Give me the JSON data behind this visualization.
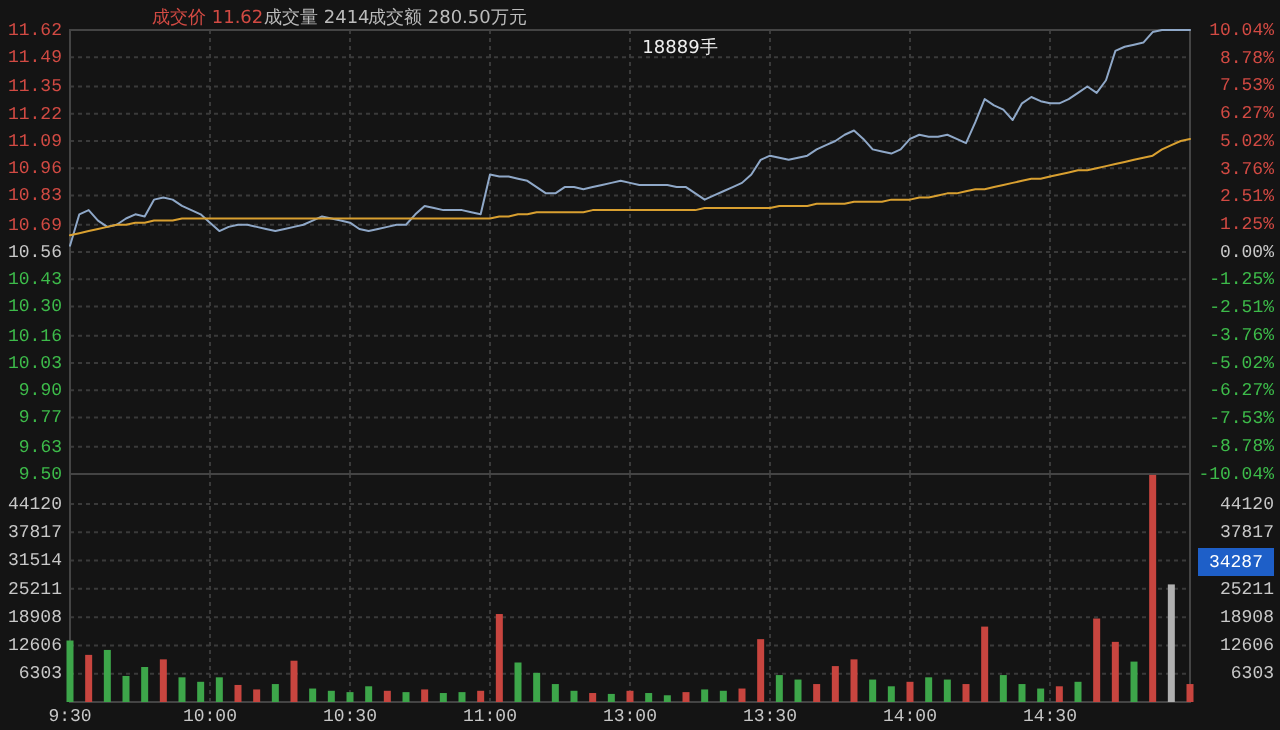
{
  "chart_data": [
    {
      "type": "line",
      "grid": true,
      "tick_labels": "y",
      "annotations": [
        "成交价 11.62",
        "成交量 2414",
        "成交额 280.50万元",
        "18889手"
      ],
      "categories": [
        null,
        null,
        null,
        null,
        null,
        null,
        null,
        null,
        null,
        null,
        null,
        null,
        null,
        null,
        null,
        null,
        null,
        null,
        null,
        null,
        null,
        null,
        null,
        null,
        null,
        null,
        null,
        null,
        null,
        null,
        null,
        null,
        null,
        null,
        null,
        null,
        null,
        null,
        null,
        null,
        null,
        null,
        null,
        null,
        null,
        null,
        null,
        null,
        null,
        null,
        null,
        null,
        null,
        null,
        null,
        null,
        null,
        null,
        null,
        null,
        null,
        null,
        null,
        null,
        null,
        null,
        null,
        null,
        null,
        null,
        null,
        null,
        null,
        null,
        null,
        null,
        null,
        null,
        null,
        null,
        null,
        null,
        null,
        null,
        null,
        null,
        null,
        null,
        null,
        null,
        null,
        null,
        null,
        null,
        null,
        null,
        null,
        null,
        null,
        null,
        null,
        null,
        null,
        null,
        null,
        null,
        null,
        null,
        null,
        null,
        null,
        null,
        null,
        null,
        null,
        null,
        null,
        null,
        null,
        null,
        null
      ],
      "ylim": [
        9.5,
        11.62
      ],
      "yticks": [
        11.62,
        11.49,
        11.35,
        11.22,
        11.09,
        10.96,
        10.83,
        10.69,
        10.56,
        10.43,
        {
          "value": 10.3,
          "label": "10.30"
        },
        10.16,
        10.03,
        {
          "value": 9.9,
          "label": "9.90"
        },
        9.77,
        9.63,
        {
          "value": 9.5,
          "label": "9.50"
        }
      ],
      "y2lim": [
        -10.04,
        10.04
      ],
      "y2ticks": [
        {
          "value": 10.04,
          "label": "10.04%"
        },
        {
          "value": 8.78,
          "label": "8.78%"
        },
        {
          "value": 7.53,
          "label": "7.53%"
        },
        {
          "value": 6.27,
          "label": "6.27%"
        },
        {
          "value": 5.02,
          "label": "5.02%"
        },
        {
          "value": 3.76,
          "label": "3.76%"
        },
        {
          "value": 2.51,
          "label": "2.51%"
        },
        {
          "value": 1.25,
          "label": "1.25%"
        },
        {
          "value": 0,
          "label": "0.00%"
        },
        {
          "value": -1.25,
          "label": "-1.25%"
        },
        {
          "value": -2.51,
          "label": "-2.51%"
        },
        {
          "value": -3.76,
          "label": "-3.76%"
        },
        {
          "value": -5.02,
          "label": "-5.02%"
        },
        {
          "value": -6.27,
          "label": "-6.27%"
        },
        {
          "value": -7.53,
          "label": "-7.53%"
        },
        {
          "value": -8.78,
          "label": "-8.78%"
        },
        {
          "value": -10.04,
          "label": "-10.04%"
        }
      ],
      "series": [
        {
          "color": "#8fa8c8",
          "values": [
            10.59,
            10.74,
            10.76,
            10.71,
            10.68,
            10.69,
            10.72,
            10.74,
            10.73,
            10.81,
            10.82,
            10.81,
            10.78,
            10.76,
            10.74,
            10.7,
            10.66,
            10.68,
            10.69,
            10.69,
            10.68,
            10.67,
            10.66,
            10.67,
            10.68,
            10.69,
            10.71,
            10.73,
            10.72,
            10.71,
            10.7,
            10.67,
            10.66,
            10.67,
            10.68,
            10.69,
            10.69,
            10.74,
            10.78,
            10.77,
            10.76,
            10.76,
            10.76,
            10.75,
            10.74,
            10.93,
            10.92,
            10.92,
            10.91,
            10.9,
            10.87,
            10.84,
            10.84,
            10.87,
            10.87,
            10.86,
            10.87,
            10.88,
            10.89,
            10.9,
            10.89,
            10.88,
            10.88,
            10.88,
            10.88,
            10.87,
            10.87,
            10.84,
            10.81,
            10.83,
            10.85,
            10.87,
            10.89,
            10.93,
            11.0,
            11.02,
            11.01,
            11.0,
            11.01,
            11.02,
            11.05,
            11.07,
            11.09,
            11.12,
            11.14,
            11.1,
            11.05,
            11.04,
            11.03,
            11.05,
            11.1,
            11.12,
            11.11,
            11.11,
            11.12,
            11.1,
            11.08,
            11.18,
            11.29,
            11.26,
            11.24,
            11.19,
            11.27,
            11.3,
            11.28,
            11.27,
            11.27,
            11.29,
            11.32,
            11.35,
            11.32,
            11.38,
            11.52,
            11.54,
            11.55,
            11.56,
            11.61,
            11.62,
            11.62,
            11.62,
            11.62
          ]
        },
        {
          "color": "#d9a030",
          "values": [
            10.64,
            10.65,
            10.66,
            10.67,
            10.68,
            10.69,
            10.69,
            10.7,
            10.7,
            10.71,
            10.71,
            10.71,
            10.72,
            10.72,
            10.72,
            10.72,
            10.72,
            10.72,
            10.72,
            10.72,
            10.72,
            10.72,
            10.72,
            10.72,
            10.72,
            10.72,
            10.72,
            10.72,
            10.72,
            10.72,
            10.72,
            10.72,
            10.72,
            10.72,
            10.72,
            10.72,
            10.72,
            10.72,
            10.72,
            10.72,
            10.72,
            10.72,
            10.72,
            10.72,
            10.72,
            10.72,
            10.73,
            10.73,
            10.74,
            10.74,
            10.75,
            10.75,
            10.75,
            10.75,
            10.75,
            10.75,
            10.76,
            10.76,
            10.76,
            10.76,
            10.76,
            10.76,
            10.76,
            10.76,
            10.76,
            10.76,
            10.76,
            10.76,
            10.77,
            10.77,
            10.77,
            10.77,
            10.77,
            10.77,
            10.77,
            10.77,
            10.78,
            10.78,
            10.78,
            10.78,
            10.79,
            10.79,
            10.79,
            10.79,
            10.8,
            10.8,
            10.8,
            10.8,
            10.81,
            10.81,
            10.81,
            10.82,
            10.82,
            10.83,
            10.84,
            10.84,
            10.85,
            10.86,
            10.86,
            10.87,
            10.88,
            10.89,
            10.9,
            10.91,
            10.91,
            10.92,
            10.93,
            10.94,
            10.95,
            10.95,
            10.96,
            10.97,
            10.98,
            10.99,
            11.0,
            11.01,
            11.02,
            11.05,
            11.07,
            11.09,
            11.1
          ]
        }
      ]
    },
    {
      "type": "bar",
      "grid": true,
      "annotations": [
        "34287"
      ],
      "categories": [
        "9:30",
        null,
        null,
        null,
        null,
        null,
        null,
        null,
        null,
        null,
        null,
        null,
        null,
        null,
        null,
        "10:00",
        null,
        null,
        null,
        null,
        null,
        null,
        null,
        null,
        null,
        null,
        null,
        null,
        null,
        null,
        "10:30",
        null,
        null,
        null,
        null,
        null,
        null,
        null,
        null,
        null,
        null,
        null,
        null,
        null,
        null,
        "11:00",
        null,
        null,
        null,
        null,
        null,
        null,
        null,
        null,
        null,
        null,
        null,
        null,
        null,
        null,
        "13:00",
        null,
        null,
        null,
        null,
        null,
        null,
        null,
        null,
        null,
        null,
        null,
        null,
        null,
        null,
        "13:30",
        null,
        null,
        null,
        null,
        null,
        null,
        null,
        null,
        null,
        null,
        null,
        null,
        null,
        null,
        "14:00",
        null,
        null,
        null,
        null,
        null,
        null,
        null,
        null,
        null,
        null,
        null,
        null,
        null,
        null,
        "14:30",
        null,
        null,
        null,
        null,
        null,
        null,
        null,
        null,
        null,
        null,
        null,
        null,
        null,
        null,
        null
      ],
      "ylim": [
        0,
        50800
      ],
      "yticks": [
        44120,
        37817,
        31514,
        25211,
        18908,
        12606,
        6303
      ],
      "y2lim": [
        0,
        50800
      ],
      "y2ticks": [
        44120,
        37817,
        25211,
        18908,
        12606,
        6303
      ],
      "values": [
        13700,
        null,
        10500,
        null,
        11600,
        null,
        5800,
        null,
        7800,
        null,
        9500,
        null,
        5500,
        null,
        4500,
        null,
        5500,
        null,
        3800,
        null,
        2800,
        null,
        4000,
        null,
        9200,
        null,
        3000,
        null,
        2500,
        null,
        2200,
        null,
        3500,
        null,
        2500,
        null,
        2200,
        null,
        2800,
        null,
        2000,
        null,
        2200,
        null,
        2500,
        null,
        19600,
        null,
        8800,
        null,
        6500,
        null,
        4000,
        null,
        2500,
        null,
        2000,
        null,
        1800,
        null,
        2500,
        null,
        2000,
        null,
        1500,
        null,
        2200,
        null,
        2800,
        null,
        2500,
        null,
        3000,
        null,
        14000,
        null,
        6000,
        null,
        5000,
        null,
        4000,
        null,
        8000,
        null,
        9500,
        null,
        5000,
        null,
        3500,
        null,
        4500,
        null,
        5500,
        null,
        5000,
        null,
        4000,
        null,
        16800,
        null,
        6000,
        null,
        4000,
        null,
        3000,
        null,
        3500,
        null,
        4500,
        null,
        18600,
        null,
        13400,
        null,
        9000,
        null,
        50600,
        null,
        26200,
        null,
        4000
      ],
      "colors": [
        "#3da64a",
        null,
        "#c8453f",
        null,
        "#3da64a",
        null,
        "#3da64a",
        null,
        "#3da64a",
        null,
        "#c8453f",
        null,
        "#3da64a",
        null,
        "#3da64a",
        null,
        "#3da64a",
        null,
        "#c8453f",
        null,
        "#c8453f",
        null,
        "#3da64a",
        null,
        "#c8453f",
        null,
        "#3da64a",
        null,
        "#3da64a",
        null,
        "#3da64a",
        null,
        "#3da64a",
        null,
        "#c8453f",
        null,
        "#3da64a",
        null,
        "#c8453f",
        null,
        "#3da64a",
        null,
        "#3da64a",
        null,
        "#c8453f",
        null,
        "#c8453f",
        null,
        "#3da64a",
        null,
        "#3da64a",
        null,
        "#3da64a",
        null,
        "#3da64a",
        null,
        "#c8453f",
        null,
        "#3da64a",
        null,
        "#c8453f",
        null,
        "#3da64a",
        null,
        "#3da64a",
        null,
        "#c8453f",
        null,
        "#3da64a",
        null,
        "#3da64a",
        null,
        "#c8453f",
        null,
        "#c8453f",
        null,
        "#3da64a",
        null,
        "#3da64a",
        null,
        "#c8453f",
        null,
        "#c8453f",
        null,
        "#c8453f",
        null,
        "#3da64a",
        null,
        "#3da64a",
        null,
        "#c8453f",
        null,
        "#3da64a",
        null,
        "#3da64a",
        null,
        "#c8453f",
        null,
        "#c8453f",
        null,
        "#3da64a",
        null,
        "#3da64a",
        null,
        "#3da64a",
        null,
        "#c8453f",
        null,
        "#3da64a",
        null,
        "#c8453f",
        null,
        "#c8453f",
        null,
        "#3da64a",
        null,
        "#c8453f",
        null,
        "#b0b0b0",
        null,
        "#c8453f"
      ]
    }
  ]
}
